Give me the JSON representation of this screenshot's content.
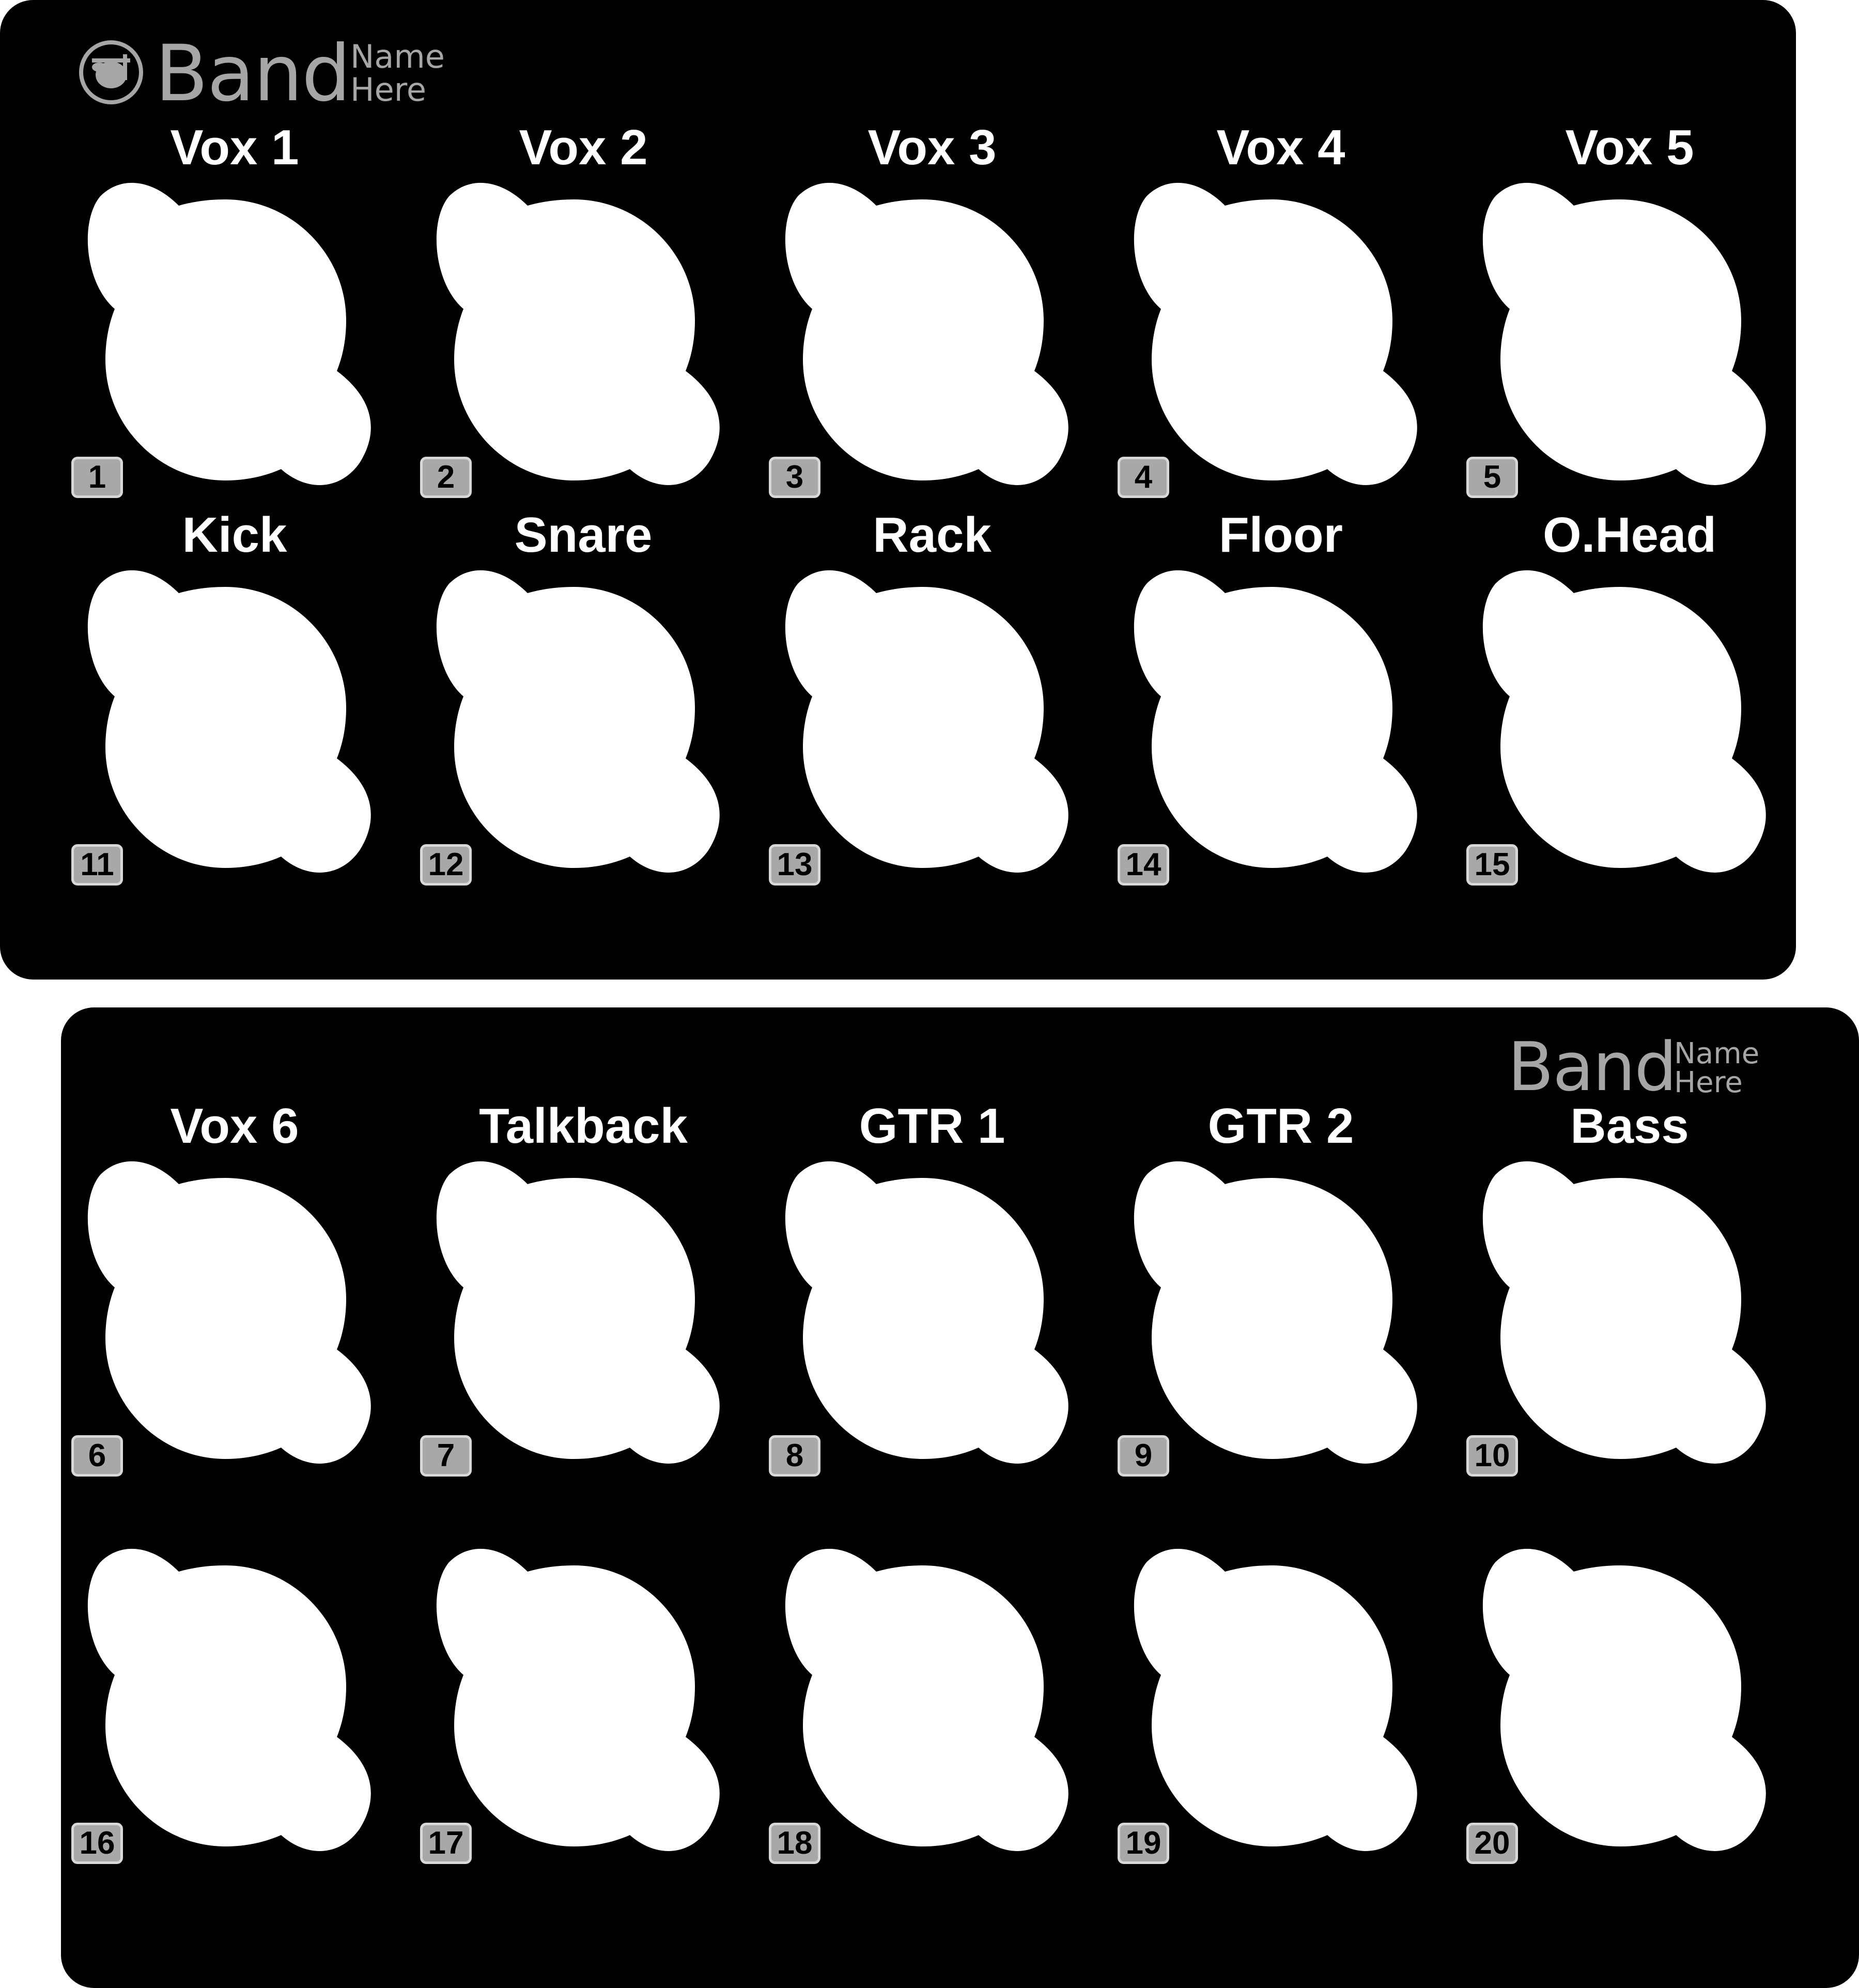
{
  "brand": {
    "name": "Band",
    "sub_line1": "Name",
    "sub_line2": "Here",
    "icon": "drum-kit-icon"
  },
  "colors": {
    "panel": "#000000",
    "socket": "#ffffff",
    "badge": "#a8a8a8",
    "brand_text": "#a6a6a6"
  },
  "top_panel": {
    "row1": [
      {
        "label": "Vox 1",
        "channel": "1"
      },
      {
        "label": "Vox 2",
        "channel": "2"
      },
      {
        "label": "Vox 3",
        "channel": "3"
      },
      {
        "label": "Vox 4",
        "channel": "4"
      },
      {
        "label": "Vox 5",
        "channel": "5"
      }
    ],
    "row2": [
      {
        "label": "Kick",
        "channel": "11"
      },
      {
        "label": "Snare",
        "channel": "12"
      },
      {
        "label": "Rack",
        "channel": "13"
      },
      {
        "label": "Floor",
        "channel": "14"
      },
      {
        "label": "O.Head",
        "channel": "15"
      }
    ]
  },
  "bottom_panel": {
    "row1": [
      {
        "label": "Vox 6",
        "channel": "6"
      },
      {
        "label": "Talkback",
        "channel": "7"
      },
      {
        "label": "GTR 1",
        "channel": "8"
      },
      {
        "label": "GTR 2",
        "channel": "9"
      },
      {
        "label": "Bass",
        "channel": "10"
      }
    ],
    "row2": [
      {
        "label": "",
        "channel": "16"
      },
      {
        "label": "",
        "channel": "17"
      },
      {
        "label": "",
        "channel": "18"
      },
      {
        "label": "",
        "channel": "19"
      },
      {
        "label": "",
        "channel": "20"
      }
    ]
  }
}
